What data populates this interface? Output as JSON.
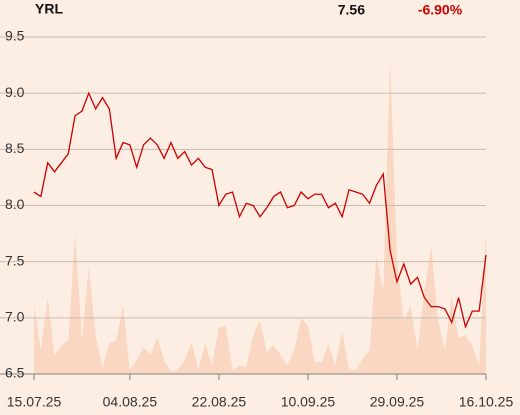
{
  "chart_data": {
    "type": "line",
    "title": "YRL",
    "price": "7.56",
    "change": "-6.90%",
    "x": [
      "15.07.25",
      "16.07.25",
      "17.07.25",
      "18.07.25",
      "21.07.25",
      "22.07.25",
      "23.07.25",
      "24.07.25",
      "25.07.25",
      "28.07.25",
      "29.07.25",
      "30.07.25",
      "31.07.25",
      "01.08.25",
      "04.08.25",
      "05.08.25",
      "06.08.25",
      "07.08.25",
      "08.08.25",
      "11.08.25",
      "12.08.25",
      "13.08.25",
      "14.08.25",
      "18.08.25",
      "19.08.25",
      "20.08.25",
      "21.08.25",
      "22.08.25",
      "25.08.25",
      "26.08.25",
      "27.08.25",
      "28.08.25",
      "29.08.25",
      "01.09.25",
      "02.09.25",
      "03.09.25",
      "04.09.25",
      "05.09.25",
      "08.09.25",
      "09.09.25",
      "10.09.25",
      "11.09.25",
      "12.09.25",
      "15.09.25",
      "16.09.25",
      "17.09.25",
      "18.09.25",
      "19.09.25",
      "22.09.25",
      "23.09.25",
      "24.09.25",
      "25.09.25",
      "26.09.25",
      "29.09.25",
      "30.09.25",
      "01.10.25",
      "02.10.25",
      "03.10.25",
      "06.10.25",
      "07.10.25",
      "08.10.25",
      "09.10.25",
      "10.10.25",
      "13.10.25",
      "14.10.25",
      "15.10.25",
      "16.10.25"
    ],
    "series": [
      {
        "name": "YRL",
        "color": "#cc0000",
        "values": [
          8.12,
          8.08,
          8.38,
          8.3,
          8.38,
          8.46,
          8.8,
          8.84,
          9.0,
          8.86,
          8.96,
          8.86,
          8.42,
          8.56,
          8.54,
          8.34,
          8.54,
          8.6,
          8.54,
          8.42,
          8.56,
          8.42,
          8.48,
          8.36,
          8.42,
          8.34,
          8.32,
          8.0,
          8.1,
          8.12,
          7.9,
          8.02,
          8.0,
          7.9,
          7.98,
          8.08,
          8.12,
          7.98,
          8.0,
          8.12,
          8.06,
          8.1,
          8.1,
          7.98,
          8.02,
          7.9,
          8.14,
          8.12,
          8.1,
          8.02,
          8.18,
          8.28,
          7.6,
          7.32,
          7.48,
          7.3,
          7.36,
          7.18,
          7.1,
          7.1,
          7.08,
          6.96,
          7.18,
          6.92,
          7.06,
          7.06,
          7.56
        ]
      },
      {
        "name": "Volume",
        "color": "#f9d7c2",
        "axis": "y2",
        "values": [
          69,
          24,
          77,
          19,
          29,
          34,
          142,
          34,
          109,
          39,
          6,
          31,
          34,
          69,
          4,
          14,
          27,
          19,
          37,
          14,
          2,
          4,
          14,
          32,
          4,
          31,
          9,
          47,
          48,
          4,
          9,
          7,
          39,
          54,
          22,
          29,
          19,
          9,
          24,
          56,
          49,
          12,
          12,
          30,
          9,
          44,
          4,
          4,
          16,
          24,
          119,
          84,
          319,
          114,
          54,
          69,
          24,
          84,
          129,
          54,
          24,
          79,
          36,
          39,
          29,
          9,
          146
        ]
      }
    ],
    "ylim": [
      6.5,
      9.5
    ],
    "yticks": [
      6.5,
      {
        "value": 7,
        "label": "7.0"
      },
      7.5,
      {
        "value": 8,
        "label": "8.0"
      },
      8.5,
      {
        "value": 9,
        "label": "9.0"
      },
      9.5
    ],
    "y2lim": [
      0,
      340
    ],
    "xticks": [
      "15.07.25",
      "04.08.25",
      "22.08.25",
      "10.09.25",
      "29.09.25",
      "16.10.25"
    ],
    "grid": true
  }
}
